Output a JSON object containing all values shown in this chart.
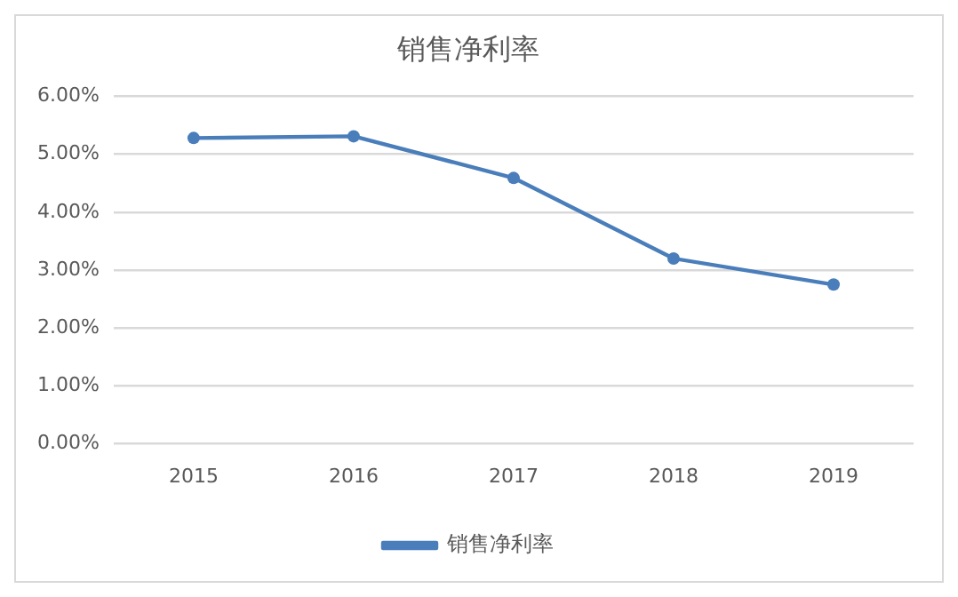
{
  "chart_data": {
    "type": "line",
    "title": "销售净利率",
    "categories": [
      "2015",
      "2016",
      "2017",
      "2018",
      "2019"
    ],
    "series": [
      {
        "name": "销售净利率",
        "color": "#4a7ebb",
        "values": [
          5.28,
          5.31,
          4.59,
          3.2,
          2.75
        ]
      }
    ],
    "ylim": [
      0,
      6
    ],
    "yticks": [
      {
        "value": 0,
        "label": "0.00%"
      },
      {
        "value": 1,
        "label": "1.00%"
      },
      {
        "value": 2,
        "label": "2.00%"
      },
      {
        "value": 3,
        "label": "3.00%"
      },
      {
        "value": 4,
        "label": "4.00%"
      },
      {
        "value": 5,
        "label": "5.00%"
      },
      {
        "value": 6,
        "label": "6.00%"
      }
    ],
    "grid": "y",
    "legend": "bottom",
    "marker": "circle",
    "line_style": "solid"
  }
}
